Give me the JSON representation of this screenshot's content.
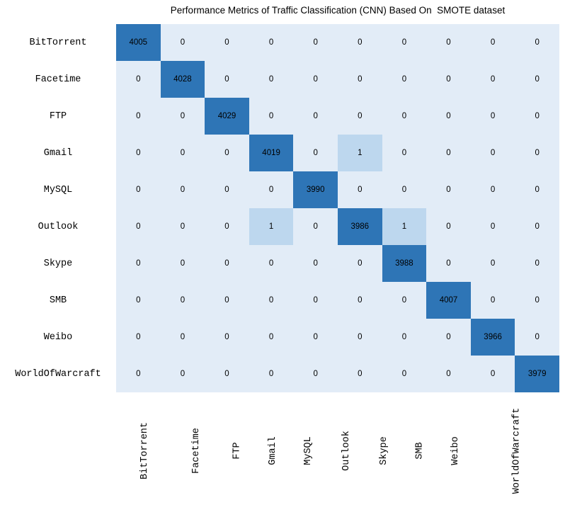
{
  "chart_data": {
    "type": "heatmap",
    "title": "Performance Metrics of Traffic Classification (CNN) Based On  SMOTE dataset",
    "row_labels": [
      "BitTorrent",
      "Facetime",
      "FTP",
      "Gmail",
      "MySQL",
      "Outlook",
      "Skype",
      "SMB",
      "Weibo",
      "WorldOfWarcraft"
    ],
    "col_labels": [
      "BitTorrent",
      "Facetime",
      "FTP",
      "Gmail",
      "MySQL",
      "Outlook",
      "Skype",
      "SMB",
      "Weibo",
      "WorldOfWarcraft"
    ],
    "matrix": [
      [
        4005,
        0,
        0,
        0,
        0,
        0,
        0,
        0,
        0,
        0
      ],
      [
        0,
        4028,
        0,
        0,
        0,
        0,
        0,
        0,
        0,
        0
      ],
      [
        0,
        0,
        4029,
        0,
        0,
        0,
        0,
        0,
        0,
        0
      ],
      [
        0,
        0,
        0,
        4019,
        0,
        1,
        0,
        0,
        0,
        0
      ],
      [
        0,
        0,
        0,
        0,
        3990,
        0,
        0,
        0,
        0,
        0
      ],
      [
        0,
        0,
        0,
        1,
        0,
        3986,
        1,
        0,
        0,
        0
      ],
      [
        0,
        0,
        0,
        0,
        0,
        0,
        3988,
        0,
        0,
        0
      ],
      [
        0,
        0,
        0,
        0,
        0,
        0,
        0,
        4007,
        0,
        0
      ],
      [
        0,
        0,
        0,
        0,
        0,
        0,
        0,
        0,
        3966,
        0
      ],
      [
        0,
        0,
        0,
        0,
        0,
        0,
        0,
        0,
        0,
        3979
      ]
    ],
    "colors": {
      "diagonal_cell": "#2e75b6",
      "nonzero_offdiagonal_cell": "#bdd7ee",
      "zero_cell": "#e2ecf7",
      "text": "#000000",
      "background": "#ffffff"
    },
    "value_range": [
      0,
      4029
    ],
    "legend": "none",
    "grid_lines": "off",
    "xlabel": "",
    "ylabel": ""
  }
}
